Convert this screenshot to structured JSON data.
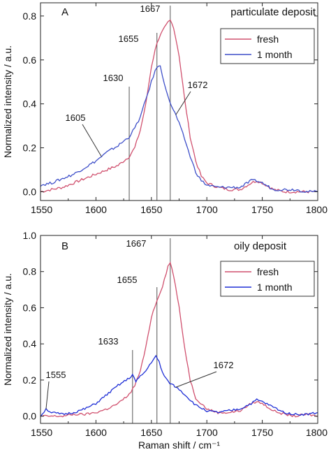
{
  "chart_data": [
    {
      "type": "line",
      "panel_label": "A",
      "title": "particulate deposit",
      "ylabel": "Normalized intensity / a.u.",
      "xlabel": "",
      "xlim": [
        1550,
        1800
      ],
      "ylim": [
        -0.04,
        0.86
      ],
      "x_ticks": [
        1550,
        1600,
        1650,
        1700,
        1750,
        1800
      ],
      "x_tick_labels": [
        "1550",
        "1600",
        "1650",
        "1700",
        "1750",
        "1800"
      ],
      "y_ticks": [
        0.0,
        0.2,
        0.4,
        0.6,
        0.8
      ],
      "y_tick_labels": [
        "0.0",
        "0.2",
        "0.4",
        "0.6",
        "0.8"
      ],
      "legend_position": "top-right",
      "series": [
        {
          "name": "fresh",
          "color": "#d0506e",
          "x": [
            1550,
            1560,
            1570,
            1580,
            1590,
            1600,
            1610,
            1620,
            1630,
            1635,
            1640,
            1645,
            1650,
            1655,
            1660,
            1665,
            1667,
            1670,
            1675,
            1680,
            1685,
            1690,
            1695,
            1700,
            1710,
            1720,
            1730,
            1740,
            1745,
            1750,
            1760,
            1770,
            1780,
            1790,
            1800
          ],
          "y": [
            0.0,
            0.01,
            0.02,
            0.04,
            0.06,
            0.08,
            0.1,
            0.12,
            0.16,
            0.2,
            0.28,
            0.4,
            0.57,
            0.68,
            0.73,
            0.77,
            0.78,
            0.75,
            0.62,
            0.42,
            0.25,
            0.14,
            0.07,
            0.04,
            0.02,
            0.01,
            0.01,
            0.04,
            0.05,
            0.04,
            0.01,
            0.0,
            0.0,
            0.0,
            0.0
          ]
        },
        {
          "name": "1 month",
          "color": "#3e4fc9",
          "x": [
            1550,
            1560,
            1570,
            1580,
            1590,
            1600,
            1605,
            1610,
            1620,
            1630,
            1635,
            1640,
            1645,
            1650,
            1655,
            1658,
            1660,
            1665,
            1670,
            1672,
            1675,
            1680,
            1685,
            1690,
            1695,
            1700,
            1710,
            1720,
            1730,
            1740,
            1745,
            1750,
            1760,
            1770,
            1780,
            1790,
            1800
          ],
          "y": [
            0.03,
            0.04,
            0.06,
            0.08,
            0.11,
            0.14,
            0.16,
            0.18,
            0.21,
            0.25,
            0.29,
            0.34,
            0.42,
            0.5,
            0.57,
            0.57,
            0.53,
            0.43,
            0.37,
            0.35,
            0.31,
            0.24,
            0.16,
            0.09,
            0.05,
            0.03,
            0.02,
            0.02,
            0.02,
            0.05,
            0.05,
            0.04,
            0.01,
            0.01,
            0.01,
            0.0,
            0.0
          ]
        }
      ],
      "annotations": [
        {
          "text": "1667",
          "x": 1667,
          "kind": "vline"
        },
        {
          "text": "1655",
          "x": 1655,
          "kind": "vline"
        },
        {
          "text": "1630",
          "x": 1630,
          "kind": "vline"
        },
        {
          "text": "1605",
          "x": 1605,
          "kind": "leader",
          "target_y": 0.16
        },
        {
          "text": "1672",
          "x": 1672,
          "kind": "leader",
          "target_y": 0.35
        }
      ]
    },
    {
      "type": "line",
      "panel_label": "B",
      "title": "oily deposit",
      "ylabel": "Normalized intensity / a.u.",
      "xlabel": "Raman shift / cm⁻¹",
      "xlim": [
        1550,
        1800
      ],
      "ylim": [
        -0.04,
        1.0
      ],
      "x_ticks": [
        1550,
        1600,
        1650,
        1700,
        1750,
        1800
      ],
      "x_tick_labels": [
        "1550",
        "1600",
        "1650",
        "1700",
        "1750",
        "1800"
      ],
      "y_ticks": [
        0.0,
        0.2,
        0.4,
        0.6,
        0.8,
        1.0
      ],
      "y_tick_labels": [
        "0.0",
        "0.2",
        "0.4",
        "0.6",
        "0.8",
        "1.0"
      ],
      "legend_position": "top-right",
      "series": [
        {
          "name": "fresh",
          "color": "#d0506e",
          "x": [
            1550,
            1560,
            1570,
            1580,
            1590,
            1600,
            1610,
            1620,
            1630,
            1635,
            1640,
            1645,
            1650,
            1655,
            1660,
            1665,
            1667,
            1670,
            1675,
            1680,
            1685,
            1690,
            1700,
            1710,
            1720,
            1730,
            1740,
            1745,
            1750,
            1760,
            1770,
            1780,
            1790,
            1800
          ],
          "y": [
            0.0,
            0.0,
            0.0,
            0.01,
            0.01,
            0.02,
            0.04,
            0.07,
            0.12,
            0.17,
            0.25,
            0.38,
            0.55,
            0.64,
            0.72,
            0.83,
            0.85,
            0.78,
            0.6,
            0.38,
            0.2,
            0.1,
            0.04,
            0.02,
            0.02,
            0.03,
            0.07,
            0.08,
            0.07,
            0.03,
            0.01,
            0.0,
            0.01,
            0.0
          ]
        },
        {
          "name": "1 month",
          "color": "#1f2fd6",
          "x": [
            1550,
            1555,
            1560,
            1570,
            1580,
            1590,
            1600,
            1610,
            1620,
            1630,
            1633,
            1636,
            1640,
            1645,
            1650,
            1654,
            1657,
            1660,
            1665,
            1670,
            1672,
            1675,
            1680,
            1690,
            1700,
            1710,
            1720,
            1730,
            1740,
            1745,
            1750,
            1760,
            1770,
            1780,
            1790,
            1800
          ],
          "y": [
            0.0,
            0.04,
            0.02,
            0.01,
            0.02,
            0.04,
            0.07,
            0.12,
            0.17,
            0.21,
            0.23,
            0.19,
            0.22,
            0.25,
            0.3,
            0.33,
            0.3,
            0.24,
            0.19,
            0.17,
            0.16,
            0.15,
            0.12,
            0.06,
            0.03,
            0.02,
            0.03,
            0.04,
            0.07,
            0.09,
            0.08,
            0.05,
            0.02,
            0.01,
            0.01,
            0.02
          ]
        }
      ],
      "annotations": [
        {
          "text": "1667",
          "x": 1667,
          "kind": "vline"
        },
        {
          "text": "1655",
          "x": 1655,
          "kind": "vline"
        },
        {
          "text": "1633",
          "x": 1633,
          "kind": "vline"
        },
        {
          "text": "1555",
          "x": 1555,
          "kind": "leader",
          "target_y": 0.04
        },
        {
          "text": "1672",
          "x": 1672,
          "kind": "leader",
          "target_y": 0.16
        }
      ]
    }
  ]
}
